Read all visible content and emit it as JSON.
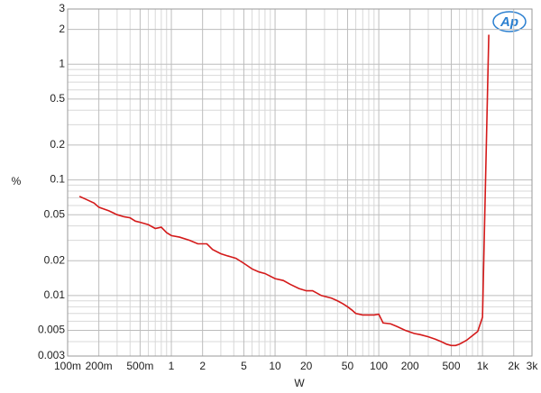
{
  "chart_data": {
    "type": "line",
    "logo": "Ap",
    "xlabel": "W",
    "ylabel": "%",
    "xscale": "log",
    "yscale": "log",
    "grid": true,
    "xlim": [
      0.1,
      3000
    ],
    "ylim": [
      0.003,
      3
    ],
    "xticks": [
      {
        "value": 0.1,
        "label": "100m"
      },
      {
        "value": 0.2,
        "label": "200m"
      },
      {
        "value": 0.5,
        "label": "500m"
      },
      1,
      2,
      5,
      10,
      20,
      50,
      100,
      200,
      500,
      {
        "value": 1000,
        "label": "1k"
      },
      {
        "value": 2000,
        "label": "2k"
      },
      {
        "value": 3000,
        "label": "3k"
      }
    ],
    "yticks": [
      0.003,
      0.005,
      0.01,
      0.02,
      0.05,
      0.1,
      0.2,
      0.5,
      1,
      2,
      3
    ],
    "x_minor_grid": [
      0.3,
      0.4,
      0.6,
      0.7,
      0.8,
      0.9,
      3,
      4,
      6,
      7,
      8,
      9,
      30,
      40,
      60,
      70,
      80,
      90,
      300,
      400,
      600,
      700,
      800,
      900
    ],
    "y_minor_grid": [
      0.004,
      0.006,
      0.007,
      0.008,
      0.009,
      0.03,
      0.04,
      0.06,
      0.07,
      0.08,
      0.09,
      0.3,
      0.4,
      0.6,
      0.7,
      0.8,
      0.9
    ],
    "x": [
      0.13,
      0.15,
      0.18,
      0.2,
      0.25,
      0.3,
      0.35,
      0.4,
      0.45,
      0.5,
      0.6,
      0.7,
      0.8,
      0.9,
      1,
      1.2,
      1.5,
      1.8,
      2.2,
      2.5,
      3,
      3.5,
      4.2,
      5,
      6,
      7,
      8,
      10,
      12,
      14,
      17,
      20,
      23,
      28,
      35,
      40,
      45,
      50,
      55,
      60,
      70,
      80,
      90,
      100,
      110,
      130,
      150,
      180,
      220,
      250,
      300,
      350,
      400,
      450,
      500,
      550,
      600,
      700,
      800,
      900,
      1000,
      1150
    ],
    "series": [
      {
        "color": "#d41a1a",
        "values": [
          0.072,
          0.068,
          0.063,
          0.058,
          0.054,
          0.05,
          0.048,
          0.047,
          0.044,
          0.043,
          0.041,
          0.038,
          0.039,
          0.035,
          0.033,
          0.032,
          0.03,
          0.028,
          0.028,
          0.025,
          0.023,
          0.022,
          0.021,
          0.019,
          0.017,
          0.016,
          0.0155,
          0.014,
          0.0135,
          0.0125,
          0.0115,
          0.011,
          0.011,
          0.01,
          0.0095,
          0.009,
          0.0085,
          0.008,
          0.0075,
          0.007,
          0.0068,
          0.0068,
          0.0068,
          0.0069,
          0.0058,
          0.0057,
          0.0054,
          0.005,
          0.0047,
          0.0046,
          0.0044,
          0.0042,
          0.004,
          0.0038,
          0.0037,
          0.0037,
          0.0038,
          0.0041,
          0.0045,
          0.0049,
          0.0065,
          1.8
        ]
      }
    ]
  }
}
